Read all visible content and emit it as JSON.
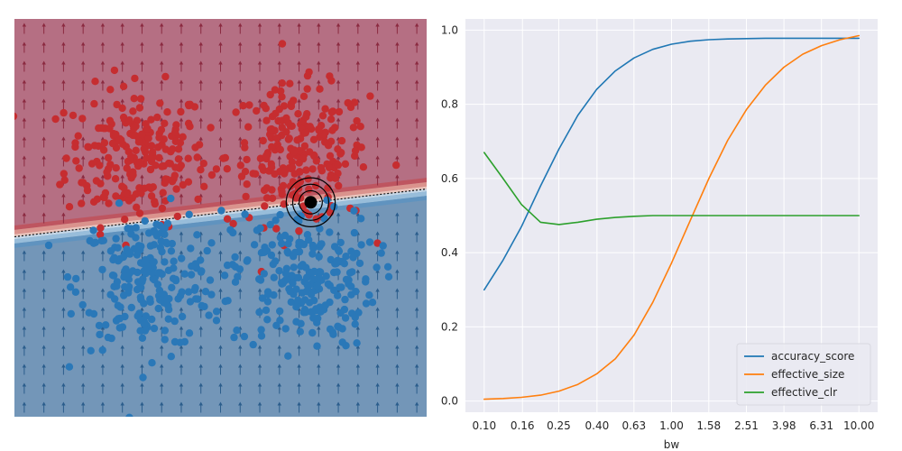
{
  "chart_data": [
    {
      "type": "scatter",
      "subtype": "decision-boundary-with-gradient-field",
      "axes_visible": false,
      "xlim": [
        -3.2,
        3.2
      ],
      "ylim": [
        -3.2,
        3.2
      ],
      "boundary": {
        "slope": 0.12,
        "intercept": 0.08
      },
      "region_colors": {
        "upper": "#b56f83",
        "lower": "#7396b8"
      },
      "band_colors": [
        "#c0515a",
        "#e19a8f",
        "#f6d6c8",
        "#d4e3ee",
        "#9fc4df",
        "#5d93bf"
      ],
      "arrow_colors": {
        "upper": "#8b2a40",
        "lower": "#2b5d8c"
      },
      "series": [
        {
          "class": 1,
          "color": "#c62d30",
          "clusters": [
            {
              "cx": -1.3,
              "cy": 1.0,
              "sx": 0.55,
              "sy": 0.55,
              "n": 220
            },
            {
              "cx": 1.2,
              "cy": 1.0,
              "sx": 0.55,
              "sy": 0.55,
              "n": 220
            }
          ]
        },
        {
          "class": 0,
          "color": "#2a78b8",
          "clusters": [
            {
              "cx": -1.1,
              "cy": -1.0,
              "sx": 0.55,
              "sy": 0.55,
              "n": 220
            },
            {
              "cx": 1.3,
              "cy": -1.0,
              "sx": 0.55,
              "sy": 0.55,
              "n": 220
            }
          ]
        }
      ],
      "highlight_point": {
        "x": 1.4,
        "y": 0.25,
        "rings": [
          0.18,
          0.28,
          0.38
        ]
      }
    },
    {
      "type": "line",
      "xscale": "log",
      "xlabel": "bw",
      "xlim": [
        0.0794,
        12.59
      ],
      "ylim": [
        -0.03,
        1.03
      ],
      "xtick_values": [
        0.1,
        0.16,
        0.25,
        0.4,
        0.63,
        1.0,
        1.58,
        2.51,
        3.98,
        6.31,
        10.0
      ],
      "xtick_labels": [
        "0.10",
        "0.16",
        "0.25",
        "0.40",
        "0.63",
        "1.00",
        "1.58",
        "2.51",
        "3.98",
        "6.31",
        "10.00"
      ],
      "ytick_values": [
        0.0,
        0.2,
        0.4,
        0.6,
        0.8,
        1.0
      ],
      "ytick_labels": [
        "0.0",
        "0.2",
        "0.4",
        "0.6",
        "0.8",
        "1.0"
      ],
      "grid": true,
      "background": "#eaeaf2",
      "legend_position": "bottom-right",
      "x": [
        0.1,
        0.126,
        0.158,
        0.2,
        0.251,
        0.316,
        0.398,
        0.501,
        0.631,
        0.794,
        1.0,
        1.259,
        1.585,
        1.995,
        2.512,
        3.162,
        3.981,
        5.012,
        6.31,
        7.943,
        10.0
      ],
      "series": [
        {
          "name": "accuracy_score",
          "color": "#1f77b4",
          "values": [
            0.3,
            0.38,
            0.47,
            0.58,
            0.68,
            0.77,
            0.84,
            0.89,
            0.925,
            0.948,
            0.962,
            0.97,
            0.974,
            0.976,
            0.977,
            0.978,
            0.978,
            0.978,
            0.978,
            0.978,
            0.978
          ]
        },
        {
          "name": "effective_size",
          "color": "#ff7f0e",
          "values": [
            0.005,
            0.007,
            0.01,
            0.016,
            0.027,
            0.045,
            0.073,
            0.114,
            0.178,
            0.266,
            0.372,
            0.487,
            0.601,
            0.703,
            0.786,
            0.851,
            0.9,
            0.935,
            0.958,
            0.974,
            0.985
          ]
        },
        {
          "name": "effective_clr",
          "color": "#2ca02c",
          "values": [
            0.67,
            0.6,
            0.53,
            0.482,
            0.476,
            0.482,
            0.49,
            0.495,
            0.498,
            0.5,
            0.5,
            0.5,
            0.5,
            0.5,
            0.5,
            0.5,
            0.5,
            0.5,
            0.5,
            0.5,
            0.5
          ]
        }
      ]
    }
  ]
}
